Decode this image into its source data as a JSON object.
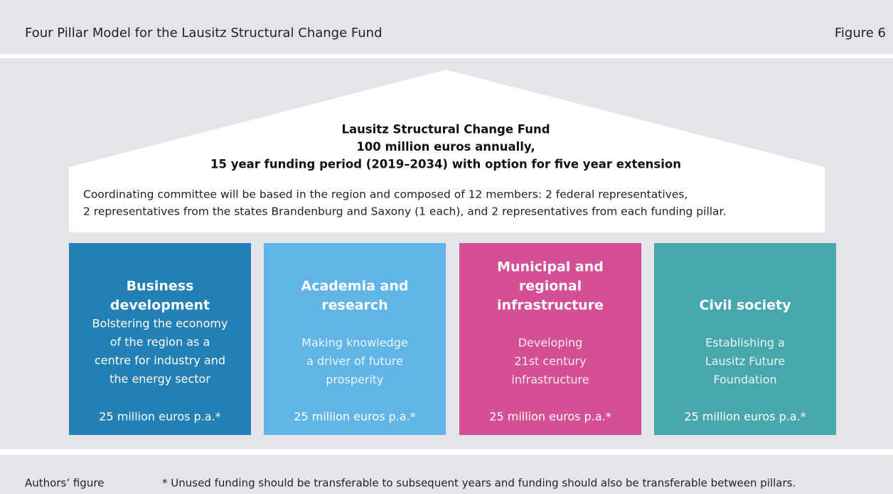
{
  "header": {
    "title": "Four Pillar Model for the Lausitz Structural Change Fund",
    "figure": "Figure 6"
  },
  "roof": {
    "lines": [
      "Lausitz Structural Change Fund",
      "100 million euros annually,",
      "15 year funding period (2019–2034) with option for five year extension"
    ]
  },
  "committee": {
    "lines": [
      "Coordinating committee will be based in the region and composed of 12 members: 2 federal representatives,",
      "2 representatives from the states Brandenburg and Saxony (1 each), and 2 representatives from each funding pillar."
    ]
  },
  "pillars": [
    {
      "title": [
        "Business",
        "development"
      ],
      "description": [
        "Bolstering the economy",
        "of the region as a",
        "centre for industry and",
        "the energy sector"
      ],
      "funding": "25 million euros p.a.*",
      "color": "#2380b5"
    },
    {
      "title": [
        "Academia and",
        "research"
      ],
      "description": [
        "Making knowledge",
        "a driver of future",
        "prosperity"
      ],
      "funding": "25 million euros p.a.*",
      "color": "#60b5e6"
    },
    {
      "title": [
        "Municipal and",
        "regional",
        "infrastructure"
      ],
      "description": [
        "Developing",
        "21st century",
        "infrastructure"
      ],
      "funding": "25 million euros p.a.*",
      "color": "#d44f93"
    },
    {
      "title": [
        "Civil society"
      ],
      "description": [
        "Establishing a",
        "Lausitz Future",
        "Foundation"
      ],
      "funding": "25 million euros p.a.*",
      "color": "#48a7ad"
    }
  ],
  "footer": {
    "source": "Authors’ figure",
    "note": "* Unused funding should be transferable to subsequent years and funding should also be transferable between pillars."
  }
}
